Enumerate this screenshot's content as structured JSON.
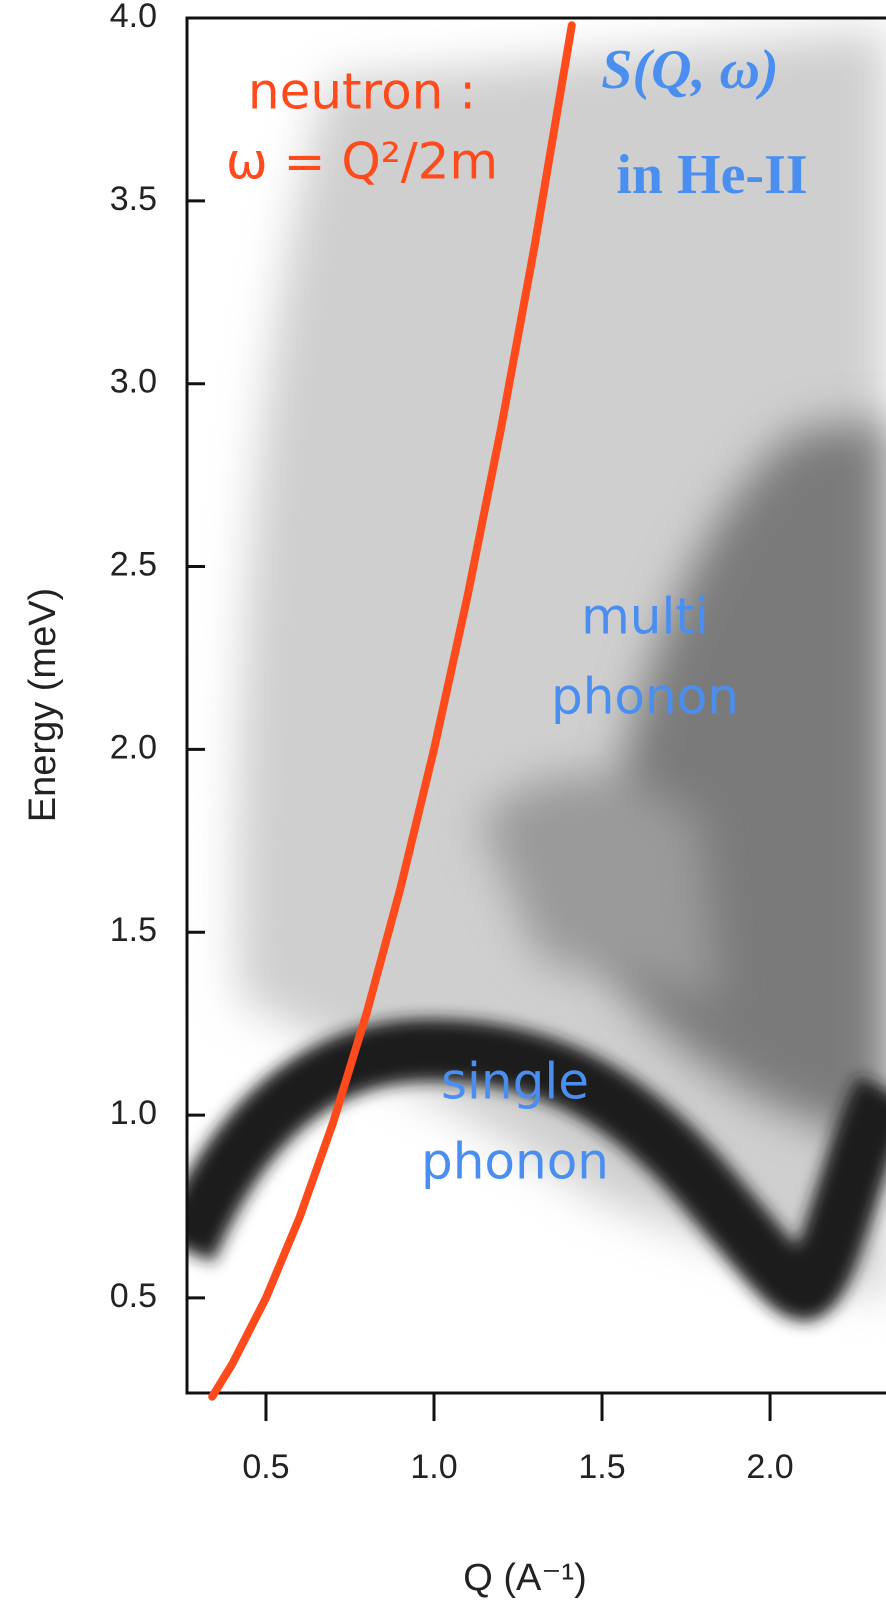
{
  "chart_data": {
    "type": "line",
    "title": "S(Q, ω)",
    "subtitle": "in He-II",
    "annotations": [
      "neutron :",
      "ω = Q²/2m",
      "multi",
      "phonon",
      "single",
      "phonon"
    ],
    "x_label": "Q (A⁻¹)",
    "y_label": "Energy (meV)",
    "xlim": [
      0.265,
      2.345
    ],
    "ylim": [
      0.24,
      4.0
    ],
    "xticks": [
      0.5,
      {
        "value": 1,
        "label": "1.0"
      },
      1.5,
      {
        "value": 2,
        "label": "2.0"
      }
    ],
    "yticks": [
      0.5,
      {
        "value": 1,
        "label": "1.0"
      },
      1.5,
      {
        "value": 2,
        "label": "2.0"
      },
      2.5,
      {
        "value": 3,
        "label": "3.0"
      },
      3.5,
      {
        "value": 4,
        "label": "4.0"
      }
    ],
    "series": [
      {
        "color": "#ff4a1c",
        "x": [
          0.34,
          0.4,
          0.5,
          0.6,
          0.7,
          0.8,
          0.9,
          1.0,
          1.1,
          1.2,
          1.3,
          1.41
        ],
        "values": [
          0.23,
          0.32,
          0.5,
          0.72,
          0.98,
          1.28,
          1.62,
          2.0,
          2.42,
          2.88,
          3.38,
          3.98
        ]
      }
    ]
  }
}
